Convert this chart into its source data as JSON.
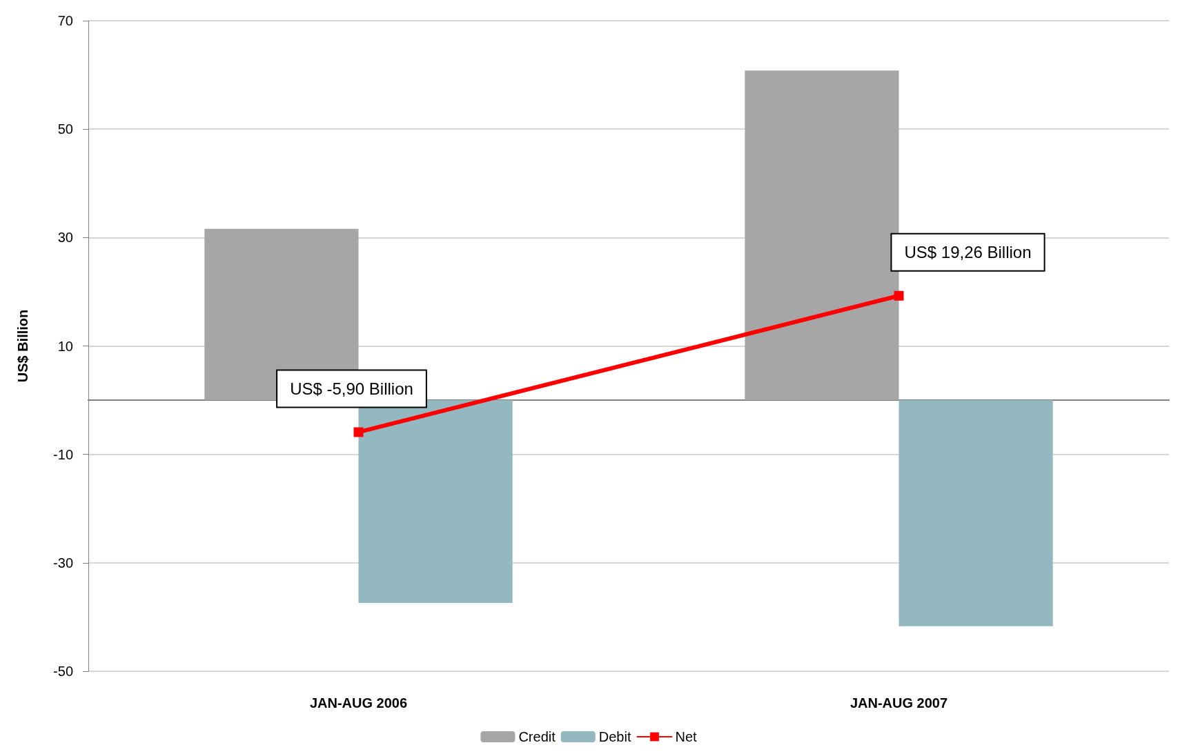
{
  "chart_data": {
    "type": "bar",
    "ylabel": "US$ Billion",
    "categories": [
      "JAN-AUG 2006",
      "JAN-AUG 2007"
    ],
    "series": [
      {
        "name": "Credit",
        "color": "#a6a6a6",
        "values": [
          31.6,
          60.8
        ]
      },
      {
        "name": "Debit",
        "color": "#93b8c0",
        "values": [
          -37.4,
          -41.7
        ]
      },
      {
        "name": "Net",
        "type": "line",
        "color": "#ff0000",
        "values": [
          -5.9,
          19.26
        ]
      }
    ],
    "ylim": [
      -50,
      70
    ],
    "yticks": [
      -50,
      -30,
      -10,
      10,
      30,
      50,
      70
    ],
    "grid": "y",
    "legend": "bottom",
    "marker": "square",
    "annotations": [
      {
        "text": "US$ -5,90 Billion",
        "x": "JAN-AUG 2006",
        "y": -5.9
      },
      {
        "text": "US$ 19,26 Billion",
        "x": "JAN-AUG 2007",
        "y": 19.26
      }
    ]
  }
}
